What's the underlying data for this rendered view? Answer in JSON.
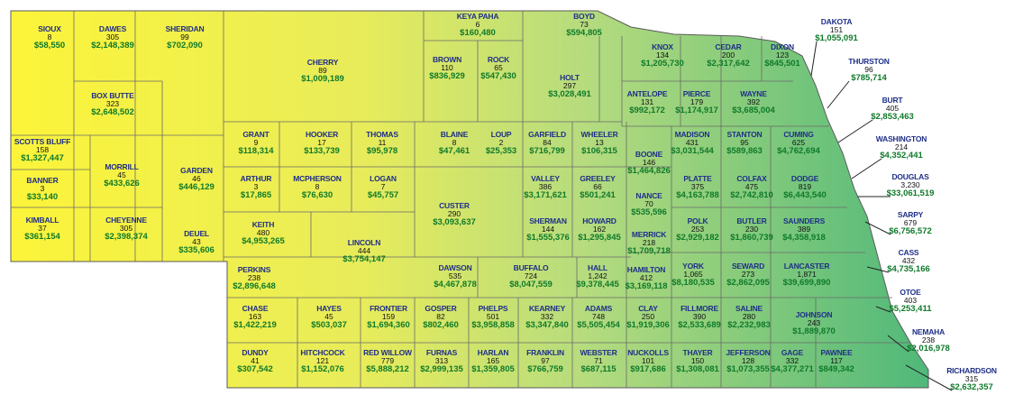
{
  "colors": {
    "west": "#fbf23a",
    "mid": "#c9e27a",
    "east": "#5dbe7a",
    "border": "#5a5a5a",
    "name_color": "#1f2f88",
    "value_color": "#0f7a2a"
  },
  "counties": [
    {
      "id": "sioux",
      "name": "SIOUX",
      "count": "8",
      "amount": "$58,550"
    },
    {
      "id": "dawes",
      "name": "DAWES",
      "count": "305",
      "amount": "$2,148,389"
    },
    {
      "id": "sheridan",
      "name": "SHERIDAN",
      "count": "99",
      "amount": "$702,090"
    },
    {
      "id": "cherry",
      "name": "CHERRY",
      "count": "89",
      "amount": "$1,009,189"
    },
    {
      "id": "keya-paha",
      "name": "KEYA PAHA",
      "count": "6",
      "amount": "$160,480"
    },
    {
      "id": "boyd",
      "name": "BOYD",
      "count": "73",
      "amount": "$594,805"
    },
    {
      "id": "brown",
      "name": "BROWN",
      "count": "110",
      "amount": "$836,929"
    },
    {
      "id": "rock",
      "name": "ROCK",
      "count": "65",
      "amount": "$547,430"
    },
    {
      "id": "holt",
      "name": "HOLT",
      "count": "297",
      "amount": "$3,028,491"
    },
    {
      "id": "knox",
      "name": "KNOX",
      "count": "134",
      "amount": "$1,205,730"
    },
    {
      "id": "cedar",
      "name": "CEDAR",
      "count": "200",
      "amount": "$2,317,642"
    },
    {
      "id": "dixon",
      "name": "DIXON",
      "count": "123",
      "amount": "$845,501"
    },
    {
      "id": "box-butte",
      "name": "BOX BUTTE",
      "count": "323",
      "amount": "$2,648,502"
    },
    {
      "id": "antelope",
      "name": "ANTELOPE",
      "count": "131",
      "amount": "$992,172"
    },
    {
      "id": "pierce",
      "name": "PIERCE",
      "count": "179",
      "amount": "$1,174,917"
    },
    {
      "id": "wayne",
      "name": "WAYNE",
      "count": "392",
      "amount": "$3,685,004"
    },
    {
      "id": "scotts-bluff",
      "name": "SCOTTS BLUFF",
      "count": "158",
      "amount": "$1,327,447"
    },
    {
      "id": "banner",
      "name": "BANNER",
      "count": "3",
      "amount": "$33,140"
    },
    {
      "id": "kimball",
      "name": "KIMBALL",
      "count": "37",
      "amount": "$361,154"
    },
    {
      "id": "morrill",
      "name": "MORRILL",
      "count": "45",
      "amount": "$433,626"
    },
    {
      "id": "cheyenne",
      "name": "CHEYENNE",
      "count": "305",
      "amount": "$2,398,374"
    },
    {
      "id": "garden",
      "name": "GARDEN",
      "count": "46",
      "amount": "$446,129"
    },
    {
      "id": "deuel",
      "name": "DEUEL",
      "count": "43",
      "amount": "$335,606"
    },
    {
      "id": "grant",
      "name": "GRANT",
      "count": "9",
      "amount": "$118,314"
    },
    {
      "id": "hooker",
      "name": "HOOKER",
      "count": "17",
      "amount": "$133,739"
    },
    {
      "id": "thomas",
      "name": "THOMAS",
      "count": "11",
      "amount": "$95,978"
    },
    {
      "id": "blaine",
      "name": "BLAINE",
      "count": "8",
      "amount": "$47,461"
    },
    {
      "id": "loup",
      "name": "LOUP",
      "count": "2",
      "amount": "$25,353"
    },
    {
      "id": "garfield",
      "name": "GARFIELD",
      "count": "84",
      "amount": "$716,799"
    },
    {
      "id": "wheeler",
      "name": "WHEELER",
      "count": "13",
      "amount": "$106,315"
    },
    {
      "id": "boone",
      "name": "BOONE",
      "count": "146",
      "amount": "$1,464,826"
    },
    {
      "id": "madison",
      "name": "MADISON",
      "count": "431",
      "amount": "$3,031,544"
    },
    {
      "id": "stanton",
      "name": "STANTON",
      "count": "95",
      "amount": "$589,863"
    },
    {
      "id": "cuming",
      "name": "CUMING",
      "count": "625",
      "amount": "$4,762,694"
    },
    {
      "id": "arthur",
      "name": "ARTHUR",
      "count": "3",
      "amount": "$17,865"
    },
    {
      "id": "mcpherson",
      "name": "MCPHERSON",
      "count": "8",
      "amount": "$76,630"
    },
    {
      "id": "logan",
      "name": "LOGAN",
      "count": "7",
      "amount": "$45,757"
    },
    {
      "id": "custer",
      "name": "CUSTER",
      "count": "290",
      "amount": "$3,093,637"
    },
    {
      "id": "valley",
      "name": "VALLEY",
      "count": "386",
      "amount": "$3,171,621"
    },
    {
      "id": "greeley",
      "name": "GREELEY",
      "count": "66",
      "amount": "$501,241"
    },
    {
      "id": "nance",
      "name": "NANCE",
      "count": "70",
      "amount": "$535,596"
    },
    {
      "id": "platte",
      "name": "PLATTE",
      "count": "375",
      "amount": "$4,163,788"
    },
    {
      "id": "colfax",
      "name": "COLFAX",
      "count": "475",
      "amount": "$2,742,810"
    },
    {
      "id": "dodge",
      "name": "DODGE",
      "count": "819",
      "amount": "$6,443,540"
    },
    {
      "id": "keith",
      "name": "KEITH",
      "count": "480",
      "amount": "$4,953,265"
    },
    {
      "id": "lincoln",
      "name": "LINCOLN",
      "count": "444",
      "amount": "$3,754,147"
    },
    {
      "id": "sherman",
      "name": "SHERMAN",
      "count": "144",
      "amount": "$1,555,376"
    },
    {
      "id": "howard",
      "name": "HOWARD",
      "count": "162",
      "amount": "$1,295,845"
    },
    {
      "id": "merrick",
      "name": "MERRICK",
      "count": "218",
      "amount": "$1,709,718"
    },
    {
      "id": "polk",
      "name": "POLK",
      "count": "253",
      "amount": "$2,929,182"
    },
    {
      "id": "butler",
      "name": "BUTLER",
      "count": "230",
      "amount": "$1,860,739"
    },
    {
      "id": "saunders",
      "name": "SAUNDERS",
      "count": "389",
      "amount": "$4,358,918"
    },
    {
      "id": "perkins",
      "name": "PERKINS",
      "count": "238",
      "amount": "$2,896,648"
    },
    {
      "id": "dawson",
      "name": "DAWSON",
      "count": "535",
      "amount": "$4,467,878"
    },
    {
      "id": "buffalo",
      "name": "BUFFALO",
      "count": "724",
      "amount": "$8,047,559"
    },
    {
      "id": "hall",
      "name": "HALL",
      "count": "1,242",
      "amount": "$9,378,445"
    },
    {
      "id": "hamilton",
      "name": "HAMILTON",
      "count": "412",
      "amount": "$3,169,118"
    },
    {
      "id": "york",
      "name": "YORK",
      "count": "1,065",
      "amount": "$8,180,535"
    },
    {
      "id": "seward",
      "name": "SEWARD",
      "count": "273",
      "amount": "$2,862,095"
    },
    {
      "id": "lancaster",
      "name": "LANCASTER",
      "count": "1,871",
      "amount": "$39,699,890"
    },
    {
      "id": "chase",
      "name": "CHASE",
      "count": "163",
      "amount": "$1,422,219"
    },
    {
      "id": "hayes",
      "name": "HAYES",
      "count": "45",
      "amount": "$503,037"
    },
    {
      "id": "frontier",
      "name": "FRONTIER",
      "count": "159",
      "amount": "$1,694,360"
    },
    {
      "id": "gosper",
      "name": "GOSPER",
      "count": "82",
      "amount": "$802,460"
    },
    {
      "id": "phelps",
      "name": "PHELPS",
      "count": "501",
      "amount": "$3,958,858"
    },
    {
      "id": "kearney",
      "name": "KEARNEY",
      "count": "332",
      "amount": "$3,347,840"
    },
    {
      "id": "adams",
      "name": "ADAMS",
      "count": "748",
      "amount": "$5,505,454"
    },
    {
      "id": "clay",
      "name": "CLAY",
      "count": "250",
      "amount": "$1,919,306"
    },
    {
      "id": "fillmore",
      "name": "FILLMORE",
      "count": "390",
      "amount": "$2,533,689"
    },
    {
      "id": "saline",
      "name": "SALINE",
      "count": "280",
      "amount": "$2,232,983"
    },
    {
      "id": "johnson",
      "name": "JOHNSON",
      "count": "243",
      "amount": "$1,889,870"
    },
    {
      "id": "dundy",
      "name": "DUNDY",
      "count": "41",
      "amount": "$307,542"
    },
    {
      "id": "hitchcock",
      "name": "HITCHCOCK",
      "count": "121",
      "amount": "$1,152,076"
    },
    {
      "id": "red-willow",
      "name": "RED WILLOW",
      "count": "779",
      "amount": "$5,888,212"
    },
    {
      "id": "furnas",
      "name": "FURNAS",
      "count": "313",
      "amount": "$2,999,135"
    },
    {
      "id": "harlan",
      "name": "HARLAN",
      "count": "165",
      "amount": "$1,359,805"
    },
    {
      "id": "franklin",
      "name": "FRANKLIN",
      "count": "97",
      "amount": "$766,759"
    },
    {
      "id": "webster",
      "name": "WEBSTER",
      "count": "71",
      "amount": "$687,115"
    },
    {
      "id": "nuckolls",
      "name": "NUCKOLLS",
      "count": "101",
      "amount": "$917,686"
    },
    {
      "id": "thayer",
      "name": "THAYER",
      "count": "150",
      "amount": "$1,308,081"
    },
    {
      "id": "jefferson",
      "name": "JEFFERSON",
      "count": "128",
      "amount": "$1,073,355"
    },
    {
      "id": "gage",
      "name": "GAGE",
      "count": "332",
      "amount": "$4,377,271"
    },
    {
      "id": "pawnee",
      "name": "PAWNEE",
      "count": "117",
      "amount": "$849,342"
    }
  ],
  "callouts": [
    {
      "id": "dakota",
      "name": "DAKOTA",
      "count": "151",
      "amount": "$1,055,091"
    },
    {
      "id": "thurston",
      "name": "THURSTON",
      "count": "96",
      "amount": "$785,714"
    },
    {
      "id": "burt",
      "name": "BURT",
      "count": "405",
      "amount": "$2,853,463"
    },
    {
      "id": "washington",
      "name": "WASHINGTON",
      "count": "214",
      "amount": "$4,352,441"
    },
    {
      "id": "douglas",
      "name": "DOUGLAS",
      "count": "3,230",
      "amount": "$33,061,519"
    },
    {
      "id": "sarpy",
      "name": "SARPY",
      "count": "679",
      "amount": "$6,756,572"
    },
    {
      "id": "cass",
      "name": "CASS",
      "count": "432",
      "amount": "$4,735,166"
    },
    {
      "id": "otoe",
      "name": "OTOE",
      "count": "403",
      "amount": "$5,253,411"
    },
    {
      "id": "nemaha",
      "name": "NEMAHA",
      "count": "238",
      "amount": "$2,016,978"
    },
    {
      "id": "richardson",
      "name": "RICHARDSON",
      "count": "315",
      "amount": "$2,632,357"
    }
  ]
}
